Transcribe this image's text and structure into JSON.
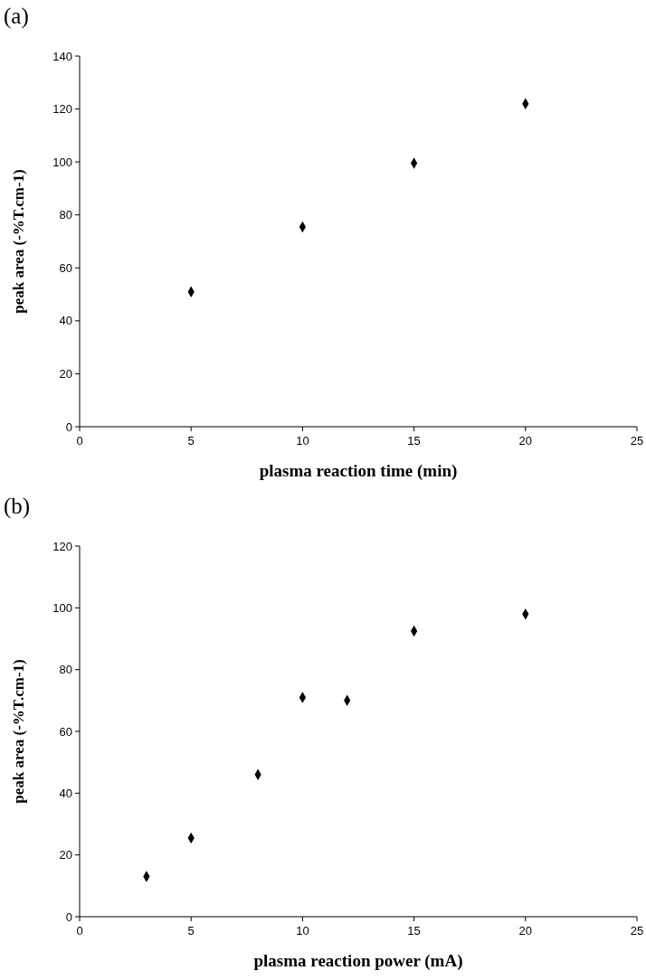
{
  "chart_data": [
    {
      "type": "scatter",
      "title": "(a)",
      "xlabel": "plasma reaction time (min)",
      "ylabel": "peak area (-%T.cm-1)",
      "x": [
        5,
        10,
        15,
        20
      ],
      "series": [
        {
          "color": "#000000",
          "values": [
            51,
            75.5,
            99.5,
            122
          ]
        }
      ],
      "xlim": [
        0,
        25
      ],
      "xticks": [
        0,
        5,
        10,
        15,
        20,
        25
      ],
      "ylim": [
        0,
        140
      ],
      "yticks": [
        0,
        20,
        40,
        60,
        80,
        100,
        120,
        140
      ],
      "grid": false,
      "marker": "diamond"
    },
    {
      "type": "scatter",
      "title": "(b)",
      "xlabel": "plasma reaction power (mA)",
      "ylabel": "peak area (-%T.cm-1)",
      "x": [
        3,
        5,
        8,
        10,
        12,
        15,
        20
      ],
      "series": [
        {
          "color": "#000000",
          "values": [
            13,
            25.5,
            46,
            71,
            70,
            92.5,
            98
          ]
        }
      ],
      "xlim": [
        0,
        25
      ],
      "xticks": [
        0,
        5,
        10,
        15,
        20,
        25
      ],
      "ylim": [
        0,
        120
      ],
      "yticks": [
        0,
        20,
        40,
        60,
        80,
        100,
        120
      ],
      "grid": false,
      "marker": "diamond"
    }
  ]
}
